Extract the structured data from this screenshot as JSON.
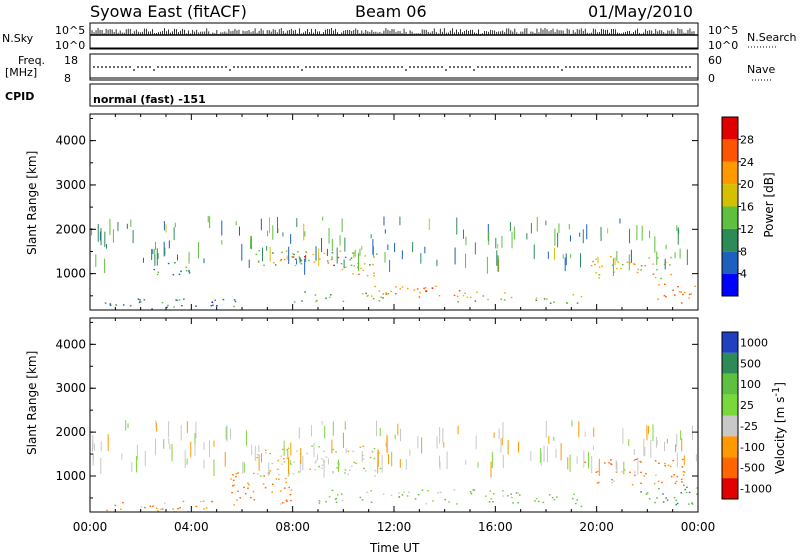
{
  "header": {
    "station": "Syowa East (fitACF)",
    "beam": "Beam 06",
    "date": "01/May/2010"
  },
  "top_panels": {
    "nsky_label": "N.Sky",
    "nsky_max": "10^5",
    "nsky_min": "10^0",
    "nsearch_label": "N.Search",
    "nsearch_max": "10^5",
    "nsearch_min": "10^0",
    "freq_label_line1": "Freq.",
    "freq_label_line2": "[MHz]",
    "freq_max": "18",
    "freq_min": "8",
    "nave_label": "Nave",
    "nave_max": "60",
    "nave_min": "0",
    "cpid_label": "CPID",
    "cpid_value": "normal (fast) -151"
  },
  "chart_data": [
    {
      "type": "heatmap",
      "title": "",
      "xlabel": "Time UT",
      "ylabel": "Slant Range [km]",
      "xticks": [
        "00:00",
        "04:00",
        "08:00",
        "12:00",
        "16:00",
        "20:00",
        "00:00"
      ],
      "xlim_hours": [
        0,
        24
      ],
      "ylim": [
        180,
        4600
      ],
      "yticks": [
        1000,
        2000,
        3000,
        4000
      ],
      "colorbar": {
        "label": "Power [dB]",
        "ticks": [
          4,
          8,
          12,
          16,
          20,
          24,
          28
        ],
        "range": [
          0,
          30
        ],
        "colors": [
          "#0000ff",
          "#1f5fbf",
          "#2e8b57",
          "#5fbf3f",
          "#d4c000",
          "#ff9900",
          "#ff5500",
          "#e00000"
        ]
      },
      "regions": [
        {
          "t0": 6.5,
          "t1": 11.3,
          "r_lo": 1150,
          "r_hi": 1550,
          "value": 14
        },
        {
          "t0": 7.2,
          "t1": 9.8,
          "r_lo": 1200,
          "r_hi": 1400,
          "value": 22
        },
        {
          "t0": 9.8,
          "t1": 11.3,
          "r_lo": 950,
          "r_hi": 1250,
          "value": 18
        },
        {
          "t0": 8.0,
          "t1": 12.0,
          "r_lo": 380,
          "r_hi": 620,
          "value": 12
        },
        {
          "t0": 11.0,
          "t1": 14.8,
          "r_lo": 480,
          "r_hi": 760,
          "value": 24
        },
        {
          "t0": 14.5,
          "t1": 17.0,
          "r_lo": 380,
          "r_hi": 620,
          "value": 16
        },
        {
          "t0": 17.5,
          "t1": 19.5,
          "r_lo": 300,
          "r_hi": 550,
          "value": 12
        },
        {
          "t0": 19.7,
          "t1": 23.0,
          "r_lo": 900,
          "r_hi": 1400,
          "value": 18
        },
        {
          "t0": 22.3,
          "t1": 24.0,
          "r_lo": 350,
          "r_hi": 800,
          "value": 22
        },
        {
          "t0": 2.5,
          "t1": 4.0,
          "r_lo": 900,
          "r_hi": 1300,
          "value": 10
        },
        {
          "t0": 0.3,
          "t1": 6.0,
          "r_lo": 200,
          "r_hi": 450,
          "value": 8
        }
      ]
    },
    {
      "type": "heatmap",
      "title": "",
      "xlabel": "Time UT",
      "ylabel": "Slant Range [km]",
      "xticks": [
        "00:00",
        "04:00",
        "08:00",
        "12:00",
        "16:00",
        "20:00",
        "00:00"
      ],
      "xlim_hours": [
        0,
        24
      ],
      "ylim": [
        180,
        4600
      ],
      "yticks": [
        1000,
        2000,
        3000,
        4000
      ],
      "colorbar": {
        "label": "Velocity [m s^-1]",
        "ticks": [
          1000,
          500,
          100,
          25,
          -25,
          -100,
          -500,
          -1000
        ],
        "colors": [
          "#2040c0",
          "#2e8b57",
          "#5fbf3f",
          "#7bd83b",
          "#c8c8c8",
          "#ff9900",
          "#ff6600",
          "#e00000"
        ]
      },
      "regions": [
        {
          "t0": 6.5,
          "t1": 11.5,
          "r_lo": 1000,
          "r_hi": 1700,
          "value": 0
        },
        {
          "t0": 9.0,
          "t1": 17.0,
          "r_lo": 380,
          "r_hi": 700,
          "value": 60
        },
        {
          "t0": 5.5,
          "t1": 8.0,
          "r_lo": 350,
          "r_hi": 1100,
          "value": -80
        },
        {
          "t0": 19.5,
          "t1": 23.5,
          "r_lo": 800,
          "r_hi": 1400,
          "value": -80
        },
        {
          "t0": 21.5,
          "t1": 24.0,
          "r_lo": 350,
          "r_hi": 800,
          "value": 300
        },
        {
          "t0": 0.3,
          "t1": 5.0,
          "r_lo": 200,
          "r_hi": 450,
          "value": -60
        },
        {
          "t0": 17.5,
          "t1": 19.5,
          "r_lo": 300,
          "r_hi": 600,
          "value": 80
        }
      ]
    }
  ]
}
